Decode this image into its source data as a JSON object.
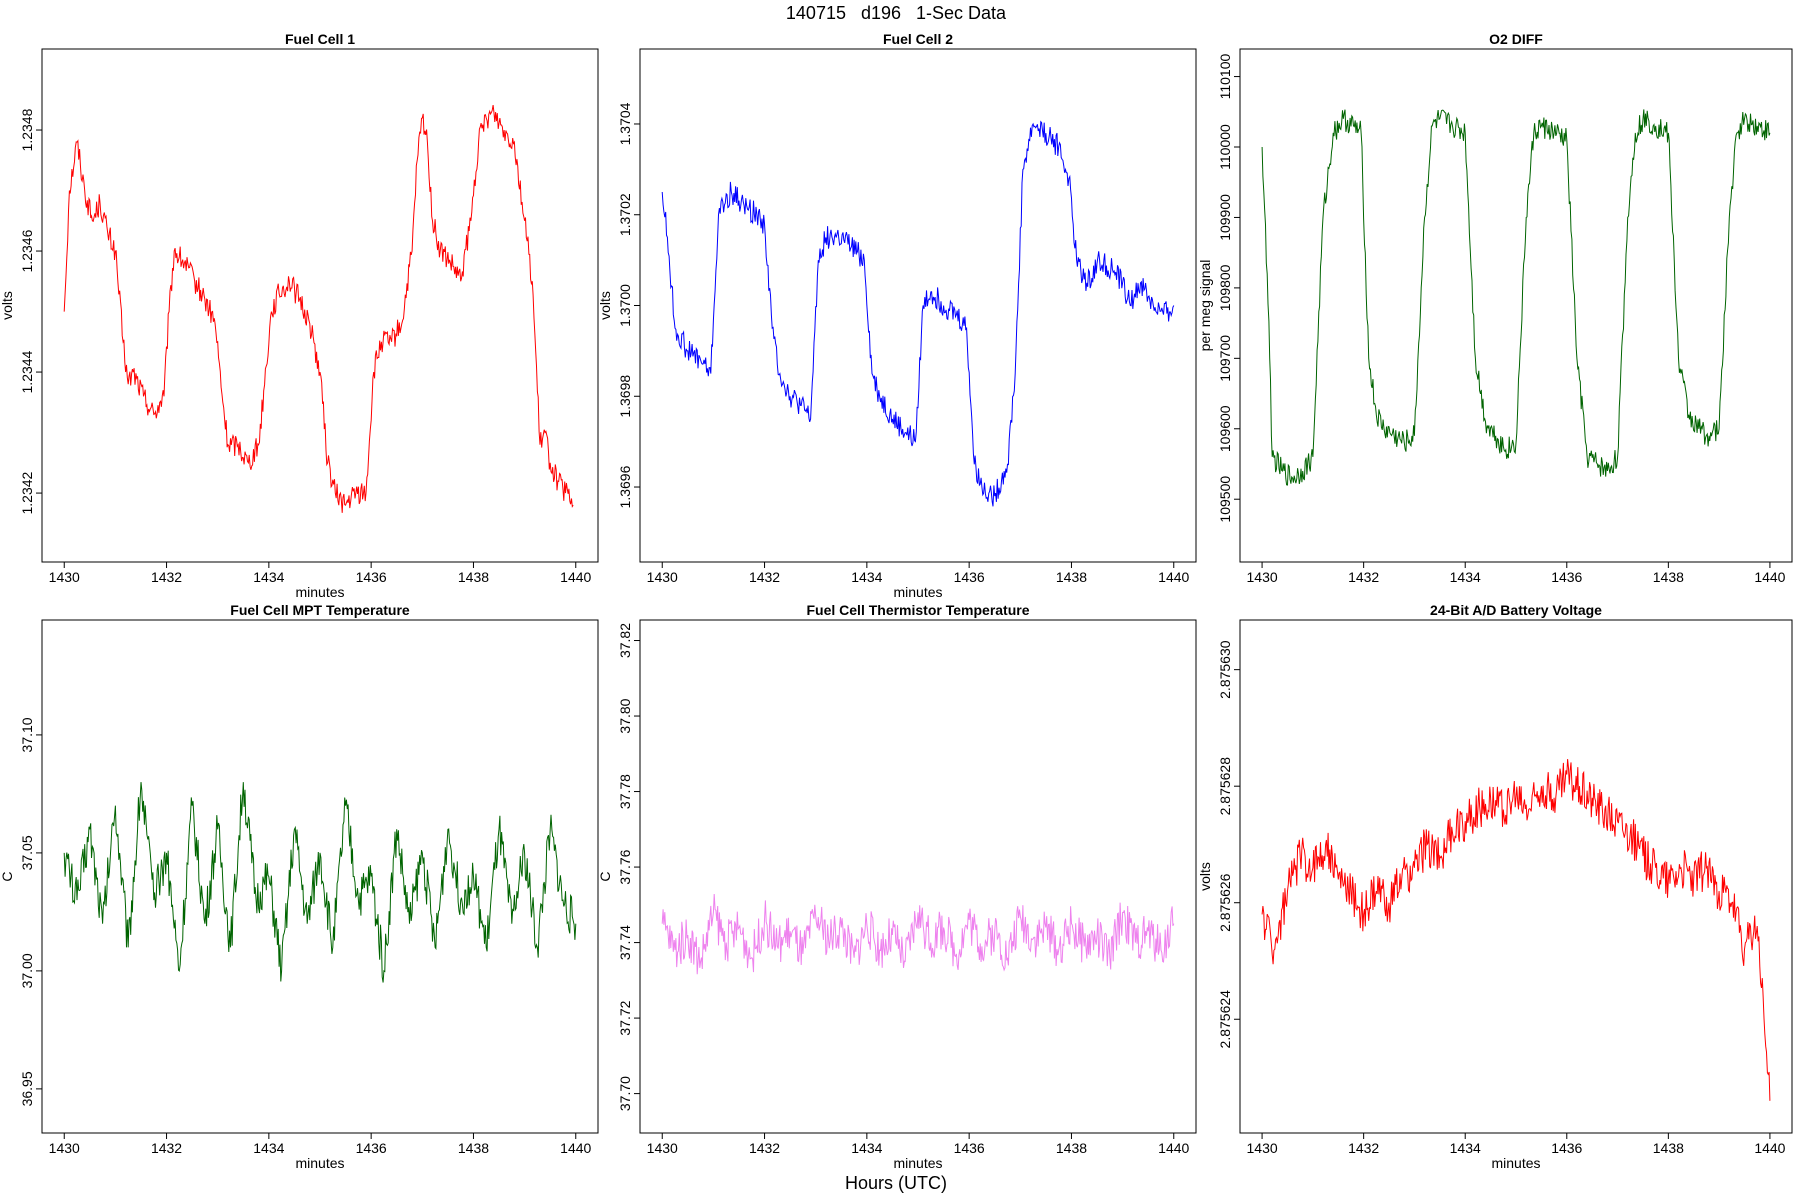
{
  "figure": {
    "title": "140715   d196   1-Sec Data",
    "footer": "Hours (UTC)"
  },
  "chart_data": [
    {
      "type": "line",
      "title": "Fuel Cell 1",
      "xlabel": "minutes",
      "ylabel": "volts",
      "color": "#ff0000",
      "xlim": [
        1430,
        1440
      ],
      "ylim": [
        1.23412,
        1.2349
      ],
      "x_ticks": [
        1430,
        1432,
        1434,
        1436,
        1438,
        1440
      ],
      "y_ticks": [
        1.2342,
        1.2344,
        1.2346,
        1.2348
      ],
      "y_tick_labels": [
        "1.2342",
        "1.2344",
        "1.2346",
        "1.2348"
      ],
      "series": [
        {
          "x": [
            1430,
            1430.1,
            1430.25,
            1430.4,
            1430.55,
            1430.7,
            1430.85,
            1431.0,
            1431.15,
            1431.25,
            1431.35,
            1431.55,
            1431.75,
            1431.95,
            1432.05,
            1432.15,
            1432.35,
            1432.55,
            1432.75,
            1432.95,
            1433.1,
            1433.2,
            1433.4,
            1433.6,
            1433.8,
            1434.05,
            1434.2,
            1434.4,
            1434.6,
            1434.8,
            1435.0,
            1435.15,
            1435.3,
            1435.5,
            1435.7,
            1435.9,
            1436.05,
            1436.2,
            1436.4,
            1436.6,
            1436.8,
            1436.9,
            1437.0,
            1437.1,
            1437.2,
            1437.35,
            1437.55,
            1437.75,
            1437.95,
            1438.1,
            1438.25,
            1438.4,
            1438.6,
            1438.8,
            1439.0,
            1439.15,
            1439.3,
            1439.4,
            1439.5,
            1439.65,
            1439.8,
            1439.95
          ],
          "y": [
            1.2345,
            1.2347,
            1.23478,
            1.2347,
            1.23465,
            1.23468,
            1.23463,
            1.2346,
            1.23445,
            1.23438,
            1.2344,
            1.23436,
            1.23433,
            1.23436,
            1.2345,
            1.2346,
            1.23458,
            1.23455,
            1.23452,
            1.23448,
            1.23435,
            1.23428,
            1.23428,
            1.23425,
            1.23428,
            1.2345,
            1.23453,
            1.23455,
            1.23452,
            1.23448,
            1.2344,
            1.23425,
            1.2342,
            1.23418,
            1.2342,
            1.2342,
            1.2344,
            1.23445,
            1.23445,
            1.23448,
            1.2346,
            1.23475,
            1.23482,
            1.23478,
            1.23465,
            1.2346,
            1.23458,
            1.23455,
            1.23465,
            1.23478,
            1.23482,
            1.23483,
            1.2348,
            1.23478,
            1.23465,
            1.23455,
            1.23428,
            1.2343,
            1.23425,
            1.23422,
            1.2342,
            1.23418
          ]
        }
      ]
    },
    {
      "type": "line",
      "title": "Fuel Cell 2",
      "xlabel": "minutes",
      "ylabel": "volts",
      "color": "#0000ff",
      "xlim": [
        1430,
        1440
      ],
      "ylim": [
        1.36948,
        1.37052
      ],
      "x_ticks": [
        1430,
        1432,
        1434,
        1436,
        1438,
        1440
      ],
      "y_ticks": [
        1.3696,
        1.3698,
        1.37,
        1.3702,
        1.3704
      ],
      "y_tick_labels": [
        "1.3696",
        "1.3698",
        "1.3700",
        "1.3702",
        "1.3704"
      ],
      "series": [
        {
          "x": [
            1430,
            1430.1,
            1430.25,
            1430.5,
            1430.75,
            1430.95,
            1431.1,
            1431.35,
            1431.6,
            1431.85,
            1432.0,
            1432.15,
            1432.3,
            1432.5,
            1432.7,
            1432.9,
            1433.05,
            1433.2,
            1433.45,
            1433.7,
            1433.95,
            1434.1,
            1434.25,
            1434.5,
            1434.75,
            1434.95,
            1435.1,
            1435.25,
            1435.5,
            1435.75,
            1435.95,
            1436.1,
            1436.25,
            1436.5,
            1436.75,
            1436.9,
            1437.05,
            1437.25,
            1437.5,
            1437.75,
            1437.95,
            1438.1,
            1438.3,
            1438.55,
            1438.8,
            1439.0,
            1439.15,
            1439.35,
            1439.6,
            1439.8,
            1440.0
          ],
          "y": [
            1.37025,
            1.37015,
            1.36995,
            1.3699,
            1.36988,
            1.36985,
            1.3702,
            1.37025,
            1.37022,
            1.3702,
            1.37018,
            1.36995,
            1.36985,
            1.3698,
            1.36978,
            1.36975,
            1.3701,
            1.37015,
            1.37015,
            1.37013,
            1.3701,
            1.36985,
            1.3698,
            1.36975,
            1.36972,
            1.3697,
            1.37,
            1.37003,
            1.37,
            1.36998,
            1.36995,
            1.36965,
            1.3696,
            1.36958,
            1.36965,
            1.36985,
            1.3703,
            1.3704,
            1.37038,
            1.37035,
            1.37028,
            1.3701,
            1.37005,
            1.3701,
            1.37008,
            1.37005,
            1.37,
            1.37005,
            1.37,
            1.36998,
            1.37
          ]
        }
      ]
    },
    {
      "type": "line",
      "title": "O2 DIFF",
      "xlabel": "",
      "ylabel": "per meg signal",
      "color": "#006400",
      "xlim": [
        1430,
        1440
      ],
      "ylim": [
        109440,
        110110
      ],
      "x_ticks": [
        1430,
        1432,
        1434,
        1436,
        1438,
        1440
      ],
      "y_ticks": [
        109500,
        109600,
        109700,
        109800,
        109900,
        110000,
        110100
      ],
      "y_tick_labels": [
        "109500",
        "109600",
        "109700",
        "109800",
        "109900",
        "110000",
        "110100"
      ],
      "series": [
        {
          "x": [
            1430,
            1430.1,
            1430.15,
            1430.2,
            1430.4,
            1430.6,
            1430.8,
            1431.0,
            1431.2,
            1431.4,
            1431.6,
            1431.8,
            1431.95,
            1432.1,
            1432.25,
            1432.4,
            1432.6,
            1432.8,
            1433.0,
            1433.2,
            1433.35,
            1433.5,
            1433.75,
            1434.0,
            1434.2,
            1434.4,
            1434.6,
            1434.8,
            1435.0,
            1435.2,
            1435.35,
            1435.5,
            1435.75,
            1436.0,
            1436.2,
            1436.4,
            1436.6,
            1436.8,
            1437.0,
            1437.2,
            1437.35,
            1437.5,
            1437.75,
            1438.0,
            1438.2,
            1438.4,
            1438.6,
            1438.8,
            1439.0,
            1439.2,
            1439.35,
            1439.5,
            1439.75,
            1440.0
          ],
          "y": [
            110000,
            109820,
            109700,
            109560,
            109540,
            109530,
            109540,
            109560,
            109900,
            110020,
            110040,
            110030,
            110020,
            109700,
            109620,
            109600,
            109590,
            109580,
            109590,
            109900,
            110030,
            110040,
            110030,
            110020,
            109700,
            109610,
            109590,
            109570,
            109580,
            109900,
            110020,
            110030,
            110020,
            110010,
            109700,
            109560,
            109550,
            109540,
            109560,
            109900,
            110020,
            110040,
            110030,
            110020,
            109700,
            109620,
            109600,
            109590,
            109600,
            109900,
            110020,
            110040,
            110030,
            110020
          ]
        }
      ]
    },
    {
      "type": "line",
      "title": "Fuel Cell MPT Temperature",
      "xlabel": "minutes",
      "ylabel": "C",
      "color": "#006400",
      "xlim": [
        1430,
        1440
      ],
      "ylim": [
        36.94,
        37.14
      ],
      "x_ticks": [
        1430,
        1432,
        1434,
        1436,
        1438,
        1440
      ],
      "y_ticks": [
        36.95,
        37.0,
        37.05,
        37.1
      ],
      "y_tick_labels": [
        "36.95",
        "37.00",
        "37.05",
        "37.10"
      ],
      "series": [
        {
          "x": [
            1430,
            1430.25,
            1430.5,
            1430.75,
            1431.0,
            1431.25,
            1431.5,
            1431.75,
            1432.0,
            1432.25,
            1432.5,
            1432.75,
            1433.0,
            1433.25,
            1433.5,
            1433.75,
            1434.0,
            1434.25,
            1434.5,
            1434.75,
            1435.0,
            1435.25,
            1435.5,
            1435.75,
            1436.0,
            1436.25,
            1436.5,
            1436.75,
            1437.0,
            1437.25,
            1437.5,
            1437.75,
            1438.0,
            1438.25,
            1438.5,
            1438.75,
            1439.0,
            1439.25,
            1439.5,
            1439.75,
            1440.0
          ],
          "y": [
            37.05,
            37.03,
            37.06,
            37.02,
            37.07,
            37.01,
            37.08,
            37.03,
            37.05,
            37.0,
            37.07,
            37.02,
            37.06,
            37.01,
            37.08,
            37.03,
            37.04,
            37.0,
            37.06,
            37.02,
            37.05,
            37.01,
            37.07,
            37.03,
            37.04,
            37.0,
            37.06,
            37.02,
            37.05,
            37.01,
            37.06,
            37.03,
            37.04,
            37.01,
            37.06,
            37.02,
            37.05,
            37.01,
            37.06,
            37.03,
            37.02
          ]
        }
      ]
    },
    {
      "type": "line",
      "title": "Fuel Cell Thermistor Temperature",
      "xlabel": "minutes",
      "ylabel": "C",
      "color": "#ee82ee",
      "xlim": [
        1430,
        1440
      ],
      "ylim": [
        37.695,
        37.82
      ],
      "x_ticks": [
        1430,
        1432,
        1434,
        1436,
        1438,
        1440
      ],
      "y_ticks": [
        37.7,
        37.72,
        37.74,
        37.76,
        37.78,
        37.8,
        37.82
      ],
      "y_tick_labels": [
        "37.70",
        "37.72",
        "37.74",
        "37.76",
        "37.78",
        "37.80",
        "37.82"
      ],
      "series": [
        {
          "x": [
            1430,
            1430.25,
            1430.5,
            1430.75,
            1431.0,
            1431.25,
            1431.5,
            1431.75,
            1432.0,
            1432.25,
            1432.5,
            1432.75,
            1433.0,
            1433.25,
            1433.5,
            1433.75,
            1434.0,
            1434.25,
            1434.5,
            1434.75,
            1435.0,
            1435.25,
            1435.5,
            1435.75,
            1436.0,
            1436.25,
            1436.5,
            1436.75,
            1437.0,
            1437.25,
            1437.5,
            1437.75,
            1438.0,
            1438.25,
            1438.5,
            1438.75,
            1439.0,
            1439.25,
            1439.5,
            1439.75,
            1440.0
          ],
          "y": [
            37.745,
            37.738,
            37.742,
            37.735,
            37.748,
            37.74,
            37.744,
            37.736,
            37.746,
            37.739,
            37.743,
            37.737,
            37.747,
            37.741,
            37.744,
            37.736,
            37.745,
            37.738,
            37.742,
            37.735,
            37.748,
            37.74,
            37.744,
            37.737,
            37.746,
            37.739,
            37.743,
            37.736,
            37.747,
            37.741,
            37.744,
            37.738,
            37.745,
            37.739,
            37.742,
            37.736,
            37.748,
            37.74,
            37.743,
            37.738,
            37.745
          ]
        }
      ]
    },
    {
      "type": "line",
      "title": "24-Bit A/D Battery Voltage",
      "xlabel": "minutes",
      "ylabel": "volts",
      "color": "#ff0000",
      "xlim": [
        1430,
        1440
      ],
      "ylim": [
        2.8756224,
        2.8756305
      ],
      "x_ticks": [
        1430,
        1432,
        1434,
        1436,
        1438,
        1440
      ],
      "y_ticks": [
        2.875624,
        2.875626,
        2.875628,
        2.87563
      ],
      "y_tick_labels": [
        "2.875624",
        "2.875626",
        "2.875628",
        "2.875630"
      ],
      "series": [
        {
          "x": [
            1430,
            1430.25,
            1430.5,
            1430.75,
            1431.0,
            1431.25,
            1431.5,
            1431.75,
            1432.0,
            1432.25,
            1432.5,
            1432.75,
            1433.0,
            1433.25,
            1433.5,
            1433.75,
            1434.0,
            1434.25,
            1434.5,
            1434.75,
            1435.0,
            1435.25,
            1435.5,
            1435.75,
            1436.0,
            1436.25,
            1436.5,
            1436.75,
            1437.0,
            1437.25,
            1437.5,
            1437.75,
            1438.0,
            1438.25,
            1438.5,
            1438.75,
            1439.0,
            1439.25,
            1439.5,
            1439.75,
            1440.0
          ],
          "y": [
            2.8756258,
            2.8756252,
            2.8756262,
            2.8756268,
            2.8756266,
            2.875627,
            2.8756264,
            2.8756262,
            2.8756258,
            2.8756262,
            2.875626,
            2.8756264,
            2.8756266,
            2.875627,
            2.8756268,
            2.8756272,
            2.8756274,
            2.8756276,
            2.8756278,
            2.8756276,
            2.8756278,
            2.8756276,
            2.875628,
            2.8756278,
            2.8756282,
            2.875628,
            2.8756278,
            2.8756276,
            2.8756274,
            2.8756272,
            2.8756268,
            2.8756266,
            2.8756264,
            2.8756266,
            2.8756264,
            2.8756266,
            2.8756262,
            2.875626,
            2.8756252,
            2.8756256,
            2.8756226
          ]
        }
      ]
    }
  ]
}
